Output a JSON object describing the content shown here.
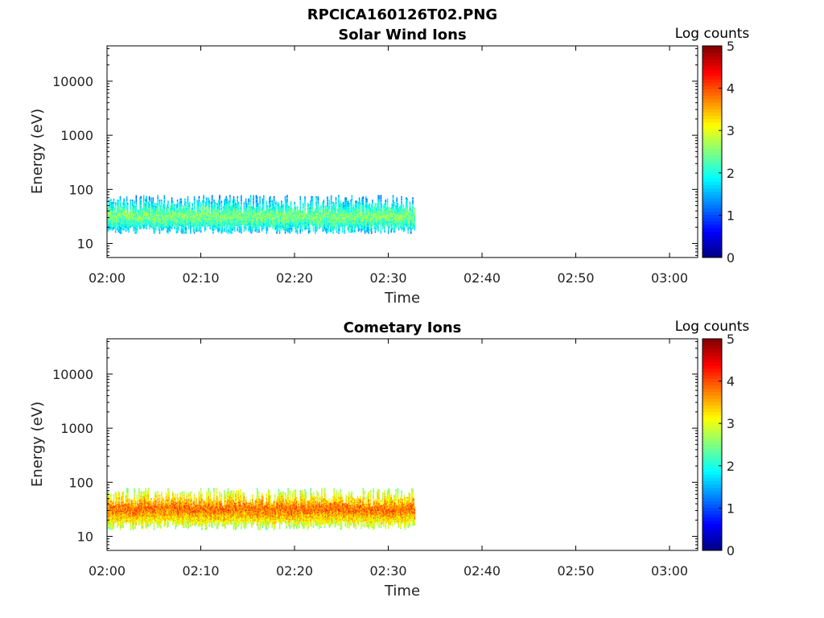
{
  "figure_title": "RPCICA160126T02.PNG",
  "colorbar": {
    "label": "Log counts",
    "ticks": [
      "0",
      "1",
      "2",
      "3",
      "4",
      "5"
    ],
    "range": [
      0,
      5
    ],
    "colormap": "jet"
  },
  "chart_data": [
    {
      "type": "heatmap",
      "title": "Solar Wind Ions",
      "xlabel": "Time",
      "ylabel": "Energy (eV)",
      "x_ticks": [
        "02:00",
        "02:10",
        "02:20",
        "02:30",
        "02:40",
        "02:50",
        "03:00"
      ],
      "xlim": [
        "02:00",
        "03:03"
      ],
      "y_ticks": [
        "10",
        "100",
        "1000",
        "10000"
      ],
      "y_scale": "log",
      "ylim": [
        5.5,
        45000
      ],
      "data_time_range": [
        "02:00",
        "02:32.8"
      ],
      "band": {
        "energy_min_eV": 17,
        "energy_max_eV": 80,
        "peak_energy_eV": 32,
        "peak_log_counts": 2.6
      }
    },
    {
      "type": "heatmap",
      "title": "Cometary Ions",
      "xlabel": "Time",
      "ylabel": "Energy (eV)",
      "x_ticks": [
        "02:00",
        "02:10",
        "02:20",
        "02:30",
        "02:40",
        "02:50",
        "03:00"
      ],
      "xlim": [
        "02:00",
        "03:03"
      ],
      "y_ticks": [
        "10",
        "100",
        "1000",
        "10000"
      ],
      "y_scale": "log",
      "ylim": [
        5.5,
        45000
      ],
      "data_time_range": [
        "02:00",
        "02:32.8"
      ],
      "band": {
        "energy_min_eV": 15,
        "energy_max_eV": 80,
        "peak_energy_eV": 32,
        "peak_log_counts": 3.9
      }
    }
  ]
}
